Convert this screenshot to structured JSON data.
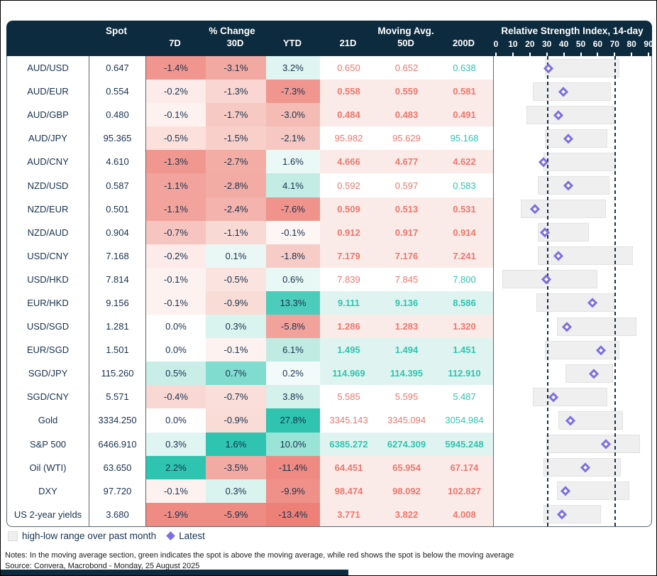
{
  "header": {
    "spot": "Spot",
    "pct_group": "% Change",
    "pct_cols": [
      "7D",
      "30D",
      "YTD"
    ],
    "ma_group": "Moving Avg.",
    "ma_cols": [
      "21D",
      "50D",
      "200D"
    ],
    "rsi_title": "Relative Strength Index, 14-day"
  },
  "rsi_axis": {
    "min": 0,
    "max": 90,
    "ticks": [
      0,
      10,
      20,
      30,
      40,
      50,
      60,
      70,
      80,
      90
    ],
    "reference_lines": [
      30,
      70
    ]
  },
  "colors": {
    "navy": "#0D2B3E",
    "red_text": "#EE766C",
    "green_text": "#2EC4B0",
    "ma_bg_below": "#FBEBE8",
    "ma_bg_above": "#DFF4F0",
    "diamond": "#7C6FE0",
    "bar_fill": "#F0EFEF",
    "bar_border": "#E3E2E1",
    "dashed_line": "#14304A",
    "strong_red": "#ED8178",
    "strong_teal": "#2EC4B0"
  },
  "rows": [
    {
      "name": "AUD/USD",
      "spot": "0.647",
      "pct": [
        {
          "v": "-1.4%",
          "bg": "#F0968E"
        },
        {
          "v": "-3.1%",
          "bg": "#F2A9A1"
        },
        {
          "v": "3.2%",
          "bg": "#DFF5F1"
        }
      ],
      "ma": {
        "bg": "white",
        "bold": false,
        "cells": [
          {
            "v": "0.650",
            "c": "red"
          },
          {
            "v": "0.652",
            "c": "red"
          },
          {
            "v": "0.638",
            "c": "green"
          }
        ]
      },
      "rsi": {
        "low": 28,
        "high": 72,
        "latest": 30
      }
    },
    {
      "name": "AUD/EUR",
      "spot": "0.554",
      "pct": [
        {
          "v": "-0.2%",
          "bg": "#FCEBE8"
        },
        {
          "v": "-1.3%",
          "bg": "#F9D6D1"
        },
        {
          "v": "-7.3%",
          "bg": "#F0968E"
        }
      ],
      "ma": {
        "bg": "pink",
        "bold": true,
        "cells": [
          {
            "v": "0.558",
            "c": "red"
          },
          {
            "v": "0.559",
            "c": "red"
          },
          {
            "v": "0.581",
            "c": "red"
          }
        ]
      },
      "rsi": {
        "low": 21,
        "high": 67,
        "latest": 39
      }
    },
    {
      "name": "AUD/GBP",
      "spot": "0.480",
      "pct": [
        {
          "v": "-0.1%",
          "bg": "#FDF2F0"
        },
        {
          "v": "-1.7%",
          "bg": "#F7C9C3"
        },
        {
          "v": "-3.0%",
          "bg": "#F5BCB5"
        }
      ],
      "ma": {
        "bg": "pink",
        "bold": true,
        "cells": [
          {
            "v": "0.484",
            "c": "red"
          },
          {
            "v": "0.483",
            "c": "red"
          },
          {
            "v": "0.491",
            "c": "red"
          }
        ]
      },
      "rsi": {
        "low": 17,
        "high": 69,
        "latest": 36
      }
    },
    {
      "name": "AUD/JPY",
      "spot": "95.365",
      "pct": [
        {
          "v": "-0.5%",
          "bg": "#FBE0DC"
        },
        {
          "v": "-1.5%",
          "bg": "#F8CFC9"
        },
        {
          "v": "-2.1%",
          "bg": "#F7C8C2"
        }
      ],
      "ma": {
        "bg": "white",
        "bold": false,
        "cells": [
          {
            "v": "95.982",
            "c": "red"
          },
          {
            "v": "95.629",
            "c": "red"
          },
          {
            "v": "95.168",
            "c": "green"
          }
        ]
      },
      "rsi": {
        "low": 28,
        "high": 65,
        "latest": 42
      }
    },
    {
      "name": "AUD/CNY",
      "spot": "4.610",
      "pct": [
        {
          "v": "-1.3%",
          "bg": "#F0988F"
        },
        {
          "v": "-2.7%",
          "bg": "#F3ADA5"
        },
        {
          "v": "1.6%",
          "bg": "#EBF9F6"
        }
      ],
      "ma": {
        "bg": "pink",
        "bold": true,
        "cells": [
          {
            "v": "4.666",
            "c": "red"
          },
          {
            "v": "4.677",
            "c": "red"
          },
          {
            "v": "4.622",
            "c": "red"
          }
        ]
      },
      "rsi": {
        "low": 27,
        "high": 70,
        "latest": 27
      }
    },
    {
      "name": "NZD/USD",
      "spot": "0.587",
      "pct": [
        {
          "v": "-1.1%",
          "bg": "#F2A39B"
        },
        {
          "v": "-2.8%",
          "bg": "#F2ACA4"
        },
        {
          "v": "4.1%",
          "bg": "#C2ECE4"
        }
      ],
      "ma": {
        "bg": "white",
        "bold": false,
        "cells": [
          {
            "v": "0.592",
            "c": "red"
          },
          {
            "v": "0.597",
            "c": "red"
          },
          {
            "v": "0.583",
            "c": "green"
          }
        ]
      },
      "rsi": {
        "low": 24,
        "high": 66,
        "latest": 42
      }
    },
    {
      "name": "NZD/EUR",
      "spot": "0.501",
      "pct": [
        {
          "v": "-1.1%",
          "bg": "#F2A39B"
        },
        {
          "v": "-2.4%",
          "bg": "#F4B3AC"
        },
        {
          "v": "-7.6%",
          "bg": "#F0938B"
        }
      ],
      "ma": {
        "bg": "pink",
        "bold": true,
        "cells": [
          {
            "v": "0.509",
            "c": "red"
          },
          {
            "v": "0.513",
            "c": "red"
          },
          {
            "v": "0.531",
            "c": "red"
          }
        ]
      },
      "rsi": {
        "low": 14,
        "high": 64,
        "latest": 22
      }
    },
    {
      "name": "NZD/AUD",
      "spot": "0.904",
      "pct": [
        {
          "v": "-0.7%",
          "bg": "#F6C5BF"
        },
        {
          "v": "-1.1%",
          "bg": "#F9D9D4"
        },
        {
          "v": "-0.1%",
          "bg": "#FEF6F5"
        }
      ],
      "ma": {
        "bg": "pink",
        "bold": true,
        "cells": [
          {
            "v": "0.912",
            "c": "red"
          },
          {
            "v": "0.917",
            "c": "red"
          },
          {
            "v": "0.914",
            "c": "red"
          }
        ]
      },
      "rsi": {
        "low": 24,
        "high": 54,
        "latest": 28
      }
    },
    {
      "name": "USD/CNY",
      "spot": "7.168",
      "pct": [
        {
          "v": "-0.2%",
          "bg": "#FCEBE8"
        },
        {
          "v": "0.1%",
          "bg": "#E9F8F5"
        },
        {
          "v": "-1.8%",
          "bg": "#F7CCC6"
        }
      ],
      "ma": {
        "bg": "pink",
        "bold": true,
        "cells": [
          {
            "v": "7.179",
            "c": "red"
          },
          {
            "v": "7.176",
            "c": "red"
          },
          {
            "v": "7.241",
            "c": "red"
          }
        ]
      },
      "rsi": {
        "low": 24,
        "high": 80,
        "latest": 36
      }
    },
    {
      "name": "USD/HKD",
      "spot": "7.814",
      "pct": [
        {
          "v": "-0.1%",
          "bg": "#FDF2F0"
        },
        {
          "v": "-0.5%",
          "bg": "#FBE3DF"
        },
        {
          "v": "0.6%",
          "bg": "#E8F8F5"
        }
      ],
      "ma": {
        "bg": "white",
        "bold": false,
        "cells": [
          {
            "v": "7.839",
            "c": "red"
          },
          {
            "v": "7.845",
            "c": "red"
          },
          {
            "v": "7.800",
            "c": "green"
          }
        ]
      },
      "rsi": {
        "low": 3,
        "high": 59,
        "latest": 29
      }
    },
    {
      "name": "EUR/HKD",
      "spot": "9.156",
      "pct": [
        {
          "v": "-0.1%",
          "bg": "#FDF2F0"
        },
        {
          "v": "-0.9%",
          "bg": "#FADCD7"
        },
        {
          "v": "13.3%",
          "bg": "#4CCDBB"
        }
      ],
      "ma": {
        "bg": "teal",
        "bold": true,
        "cells": [
          {
            "v": "9.111",
            "c": "green"
          },
          {
            "v": "9.136",
            "c": "green"
          },
          {
            "v": "8.586",
            "c": "green"
          }
        ]
      },
      "rsi": {
        "low": 23,
        "high": 69,
        "latest": 56
      }
    },
    {
      "name": "USD/SGD",
      "spot": "1.281",
      "pct": [
        {
          "v": "0.0%",
          "bg": "#FFFFFF"
        },
        {
          "v": "0.3%",
          "bg": "#D9F3EE"
        },
        {
          "v": "-5.8%",
          "bg": "#F1A29A"
        }
      ],
      "ma": {
        "bg": "pink",
        "bold": true,
        "cells": [
          {
            "v": "1.286",
            "c": "red"
          },
          {
            "v": "1.283",
            "c": "red"
          },
          {
            "v": "1.320",
            "c": "red"
          }
        ]
      },
      "rsi": {
        "low": 35,
        "high": 82,
        "latest": 41
      }
    },
    {
      "name": "EUR/SGD",
      "spot": "1.501",
      "pct": [
        {
          "v": "0.0%",
          "bg": "#FFFFFF"
        },
        {
          "v": "-0.1%",
          "bg": "#FDF2F0"
        },
        {
          "v": "6.1%",
          "bg": "#C0EBE3"
        }
      ],
      "ma": {
        "bg": "teal",
        "bold": true,
        "cells": [
          {
            "v": "1.495",
            "c": "green"
          },
          {
            "v": "1.494",
            "c": "green"
          },
          {
            "v": "1.451",
            "c": "green"
          }
        ]
      },
      "rsi": {
        "low": 28,
        "high": 72,
        "latest": 61
      }
    },
    {
      "name": "SGD/JPY",
      "spot": "115.260",
      "pct": [
        {
          "v": "0.5%",
          "bg": "#C9EEE7"
        },
        {
          "v": "0.7%",
          "bg": "#7FDCCE"
        },
        {
          "v": "0.2%",
          "bg": "#F3FBFA"
        }
      ],
      "ma": {
        "bg": "teal",
        "bold": true,
        "cells": [
          {
            "v": "114.969",
            "c": "green"
          },
          {
            "v": "114.395",
            "c": "green"
          },
          {
            "v": "112.910",
            "c": "green"
          }
        ]
      },
      "rsi": {
        "low": 40,
        "high": 68,
        "latest": 57
      }
    },
    {
      "name": "SGD/CNY",
      "spot": "5.571",
      "pct": [
        {
          "v": "-0.4%",
          "bg": "#F9D8D3"
        },
        {
          "v": "-0.7%",
          "bg": "#FADED9"
        },
        {
          "v": "3.8%",
          "bg": "#D4F1EB"
        }
      ],
      "ma": {
        "bg": "white",
        "bold": false,
        "cells": [
          {
            "v": "5.585",
            "c": "red"
          },
          {
            "v": "5.595",
            "c": "red"
          },
          {
            "v": "5.487",
            "c": "green"
          }
        ]
      },
      "rsi": {
        "low": 21,
        "high": 65,
        "latest": 33
      }
    },
    {
      "name": "Gold",
      "spot": "3334.250",
      "pct": [
        {
          "v": "0.0%",
          "bg": "#FFFFFF"
        },
        {
          "v": "-0.9%",
          "bg": "#FADCD7"
        },
        {
          "v": "27.8%",
          "bg": "#2EC4B0"
        }
      ],
      "ma": {
        "bg": "white",
        "bold": false,
        "cells": [
          {
            "v": "3345.143",
            "c": "red"
          },
          {
            "v": "3345.094",
            "c": "red"
          },
          {
            "v": "3054.984",
            "c": "green"
          }
        ]
      },
      "rsi": {
        "low": 36,
        "high": 74,
        "latest": 43
      }
    },
    {
      "name": "S&P 500",
      "spot": "6466.910",
      "pct": [
        {
          "v": "0.3%",
          "bg": "#DFF5F1"
        },
        {
          "v": "1.6%",
          "bg": "#2EC4B0"
        },
        {
          "v": "10.0%",
          "bg": "#9AE3D7"
        }
      ],
      "ma": {
        "bg": "teal",
        "bold": true,
        "cells": [
          {
            "v": "6385.272",
            "c": "green"
          },
          {
            "v": "6274.309",
            "c": "green"
          },
          {
            "v": "5945.248",
            "c": "green"
          }
        ]
      },
      "rsi": {
        "low": 29,
        "high": 84,
        "latest": 64
      }
    },
    {
      "name": "Oil (WTI)",
      "spot": "63.650",
      "pct": [
        {
          "v": "2.2%",
          "bg": "#2EC4B0"
        },
        {
          "v": "-3.5%",
          "bg": "#F2ABA3"
        },
        {
          "v": "-11.4%",
          "bg": "#EE8A81"
        }
      ],
      "ma": {
        "bg": "pink",
        "bold": true,
        "cells": [
          {
            "v": "64.451",
            "c": "red"
          },
          {
            "v": "65.954",
            "c": "red"
          },
          {
            "v": "67.174",
            "c": "red"
          }
        ]
      },
      "rsi": {
        "low": 27,
        "high": 73,
        "latest": 52
      }
    },
    {
      "name": "DXY",
      "spot": "97.720",
      "pct": [
        {
          "v": "-0.1%",
          "bg": "#FDF2F0"
        },
        {
          "v": "0.3%",
          "bg": "#D9F3EE"
        },
        {
          "v": "-9.9%",
          "bg": "#EF9189"
        }
      ],
      "ma": {
        "bg": "pink",
        "bold": true,
        "cells": [
          {
            "v": "98.474",
            "c": "red"
          },
          {
            "v": "98.092",
            "c": "red"
          },
          {
            "v": "102.827",
            "c": "red"
          }
        ]
      },
      "rsi": {
        "low": 35,
        "high": 78,
        "latest": 40
      }
    },
    {
      "name": "US 2-year yields",
      "spot": "3.680",
      "pct": [
        {
          "v": "-1.9%",
          "bg": "#EE8C83"
        },
        {
          "v": "-5.9%",
          "bg": "#EE8B82"
        },
        {
          "v": "-13.4%",
          "bg": "#ED8178"
        }
      ],
      "ma": {
        "bg": "pink",
        "bold": true,
        "cells": [
          {
            "v": "3.771",
            "c": "red"
          },
          {
            "v": "3.822",
            "c": "red"
          },
          {
            "v": "4.008",
            "c": "red"
          }
        ]
      },
      "rsi": {
        "low": 27,
        "high": 61,
        "latest": 38
      }
    }
  ],
  "legend": {
    "range_label": "high-low range over past month",
    "latest_label": "Latest"
  },
  "notes": "Notes: In the moving average section, green indicates the spot is above the moving average, while red shows the spot is below the moving average",
  "source": "Source: Convera, Macrobond - Monday, 25 August 2025",
  "chart_data": {
    "type": "table",
    "title": "Relative Strength Index, 14-day",
    "columns": [
      "Asset",
      "Spot",
      "% Change 7D",
      "% Change 30D",
      "% Change YTD",
      "Moving Avg 21D",
      "Moving Avg 50D",
      "Moving Avg 200D",
      "RSI low (past month)",
      "RSI high (past month)",
      "RSI latest"
    ],
    "rows": [
      [
        "AUD/USD",
        0.647,
        -1.4,
        -3.1,
        3.2,
        0.65,
        0.652,
        0.638,
        28,
        72,
        30
      ],
      [
        "AUD/EUR",
        0.554,
        -0.2,
        -1.3,
        -7.3,
        0.558,
        0.559,
        0.581,
        21,
        67,
        39
      ],
      [
        "AUD/GBP",
        0.48,
        -0.1,
        -1.7,
        -3.0,
        0.484,
        0.483,
        0.491,
        17,
        69,
        36
      ],
      [
        "AUD/JPY",
        95.365,
        -0.5,
        -1.5,
        -2.1,
        95.982,
        95.629,
        95.168,
        28,
        65,
        42
      ],
      [
        "AUD/CNY",
        4.61,
        -1.3,
        -2.7,
        1.6,
        4.666,
        4.677,
        4.622,
        27,
        70,
        27
      ],
      [
        "NZD/USD",
        0.587,
        -1.1,
        -2.8,
        4.1,
        0.592,
        0.597,
        0.583,
        24,
        66,
        42
      ],
      [
        "NZD/EUR",
        0.501,
        -1.1,
        -2.4,
        -7.6,
        0.509,
        0.513,
        0.531,
        14,
        64,
        22
      ],
      [
        "NZD/AUD",
        0.904,
        -0.7,
        -1.1,
        -0.1,
        0.912,
        0.917,
        0.914,
        24,
        54,
        28
      ],
      [
        "USD/CNY",
        7.168,
        -0.2,
        0.1,
        -1.8,
        7.179,
        7.176,
        7.241,
        24,
        80,
        36
      ],
      [
        "USD/HKD",
        7.814,
        -0.1,
        -0.5,
        0.6,
        7.839,
        7.845,
        7.8,
        3,
        59,
        29
      ],
      [
        "EUR/HKD",
        9.156,
        -0.1,
        -0.9,
        13.3,
        9.111,
        9.136,
        8.586,
        23,
        69,
        56
      ],
      [
        "USD/SGD",
        1.281,
        0.0,
        0.3,
        -5.8,
        1.286,
        1.283,
        1.32,
        35,
        82,
        41
      ],
      [
        "EUR/SGD",
        1.501,
        0.0,
        -0.1,
        6.1,
        1.495,
        1.494,
        1.451,
        28,
        72,
        61
      ],
      [
        "SGD/JPY",
        115.26,
        0.5,
        0.7,
        0.2,
        114.969,
        114.395,
        112.91,
        40,
        68,
        57
      ],
      [
        "SGD/CNY",
        5.571,
        -0.4,
        -0.7,
        3.8,
        5.585,
        5.595,
        5.487,
        21,
        65,
        33
      ],
      [
        "Gold",
        3334.25,
        0.0,
        -0.9,
        27.8,
        3345.143,
        3345.094,
        3054.984,
        36,
        74,
        43
      ],
      [
        "S&P 500",
        6466.91,
        0.3,
        1.6,
        10.0,
        6385.272,
        6274.309,
        5945.248,
        29,
        84,
        64
      ],
      [
        "Oil (WTI)",
        63.65,
        2.2,
        -3.5,
        -11.4,
        64.451,
        65.954,
        67.174,
        27,
        73,
        52
      ],
      [
        "DXY",
        97.72,
        -0.1,
        0.3,
        -9.9,
        98.474,
        98.092,
        102.827,
        35,
        78,
        40
      ],
      [
        "US 2-year yields",
        3.68,
        -1.9,
        -5.9,
        -13.4,
        3.771,
        3.822,
        4.008,
        27,
        61,
        38
      ]
    ],
    "rsi_axis": {
      "min": 0,
      "max": 90,
      "ticks": [
        0,
        10,
        20,
        30,
        40,
        50,
        60,
        70,
        80,
        90
      ],
      "reference_lines": [
        30,
        70
      ],
      "grid": false
    },
    "legend_position": "bottom-left"
  }
}
